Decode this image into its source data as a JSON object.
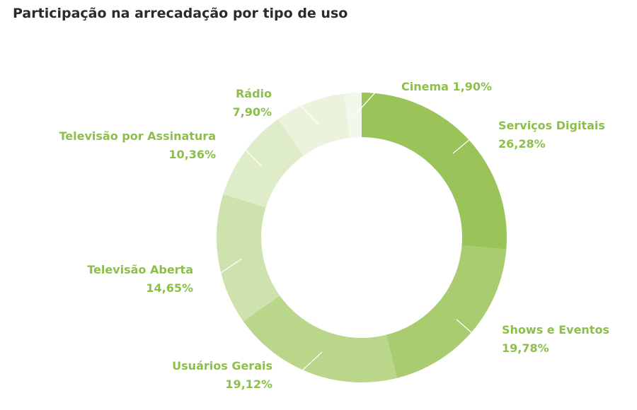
{
  "chart_data": {
    "type": "pie",
    "title": "Participação na arrecadação por tipo de uso",
    "slices": [
      {
        "label": "Serviços Digitais",
        "value": 26.28,
        "value_label": "26,28%",
        "color": "#9ac359"
      },
      {
        "label": "Shows e Eventos",
        "value": 19.78,
        "value_label": "19,78%",
        "color": "#a8cc6f"
      },
      {
        "label": "Usuários Gerais",
        "value": 19.12,
        "value_label": "19,12%",
        "color": "#b9d68b"
      },
      {
        "label": "Televisão Aberta",
        "value": 14.65,
        "value_label": "14,65%",
        "color": "#cde2ad"
      },
      {
        "label": "Televisão por Assinatura",
        "value": 10.36,
        "value_label": "10,36%",
        "color": "#dfecca"
      },
      {
        "label": "Rádio",
        "value": 7.9,
        "value_label": "7,90%",
        "color": "#ebf3dd"
      },
      {
        "label": "Cinema",
        "value": 1.9,
        "value_label": "1,90%",
        "color": "#f3f8ec"
      }
    ]
  }
}
